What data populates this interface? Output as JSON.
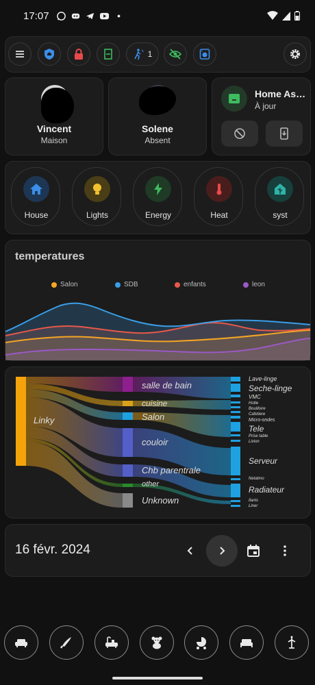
{
  "status_bar": {
    "time": "17:07"
  },
  "toolbar": {
    "menu_icon": "menu-icon",
    "chips": [
      {
        "name": "shield-home-chip",
        "icon": "shield-home-icon",
        "color": "#3b8ee8"
      },
      {
        "name": "lock-chip",
        "icon": "lock-icon",
        "color": "#e84a4a"
      },
      {
        "name": "door-chip",
        "icon": "door-closed-icon",
        "color": "#3dbb5e"
      },
      {
        "name": "motion-chip",
        "icon": "motion-sensor-icon",
        "color": "#3b8ee8",
        "count": "1"
      },
      {
        "name": "eye-off-chip",
        "icon": "eye-off-icon",
        "color": "#3dbb5e"
      },
      {
        "name": "washer-chip",
        "icon": "washing-machine-icon",
        "color": "#3b8ee8"
      }
    ],
    "settings_icon": "gear-icon"
  },
  "persons": [
    {
      "name": "Vincent",
      "state": "Maison"
    },
    {
      "name": "Solene",
      "state": "Absent"
    }
  ],
  "ha_card": {
    "title": "Home As…",
    "status": "À jour",
    "accent": "#3dbb5e"
  },
  "areas": [
    {
      "label": "House",
      "icon": "home-icon",
      "color": "#3b8ee8"
    },
    {
      "label": "Lights",
      "icon": "lightbulb-icon",
      "color": "#f2c12e"
    },
    {
      "label": "Energy",
      "icon": "lightning-icon",
      "color": "#3dbb5e"
    },
    {
      "label": "Heat",
      "icon": "thermometer-icon",
      "color": "#e84a4a"
    },
    {
      "label": "syst",
      "icon": "home-assistant-icon",
      "color": "#2fb3a8"
    }
  ],
  "temperatures": {
    "title": "temperatures",
    "legend": [
      {
        "name": "Salon",
        "color": "#f5a623"
      },
      {
        "name": "SDB",
        "color": "#3b9ee8"
      },
      {
        "name": "enfants",
        "color": "#e8584a"
      },
      {
        "name": "leon",
        "color": "#9b59c6"
      }
    ]
  },
  "sankey": {
    "source": {
      "label": "Linky",
      "color": "#f5a30b"
    },
    "rooms": [
      {
        "label": "salle de bain",
        "color": "#8e1f8e"
      },
      {
        "label": "cuisine",
        "color": "#d8a21a"
      },
      {
        "label": "Salon",
        "color": "#1ea1e0"
      },
      {
        "label": "couloir",
        "color": "#5460c8"
      },
      {
        "label": "Chb parentrale",
        "color": "#5460c8"
      },
      {
        "label": "other",
        "color": "#2a8a2a"
      },
      {
        "label": "Unknown",
        "color": "#8a8a8a"
      }
    ],
    "devices": [
      "Lave-linge",
      "Seche-linge",
      "VMC",
      "Hotte",
      "Bouilloire",
      "Cafetiere",
      "Micro-ondes",
      "Tele",
      "Prise table",
      "Livion",
      "Serveur",
      "Netatmo",
      "Radiateur",
      "Ilanis",
      "Liner"
    ],
    "device_color": "#1ea1e0"
  },
  "date_nav": {
    "date": "16 févr. 2024"
  },
  "bottom_nav": [
    {
      "name": "sofa-button",
      "icon": "sofa-icon"
    },
    {
      "name": "knife-button",
      "icon": "knife-icon"
    },
    {
      "name": "bathtub-button",
      "icon": "bathtub-icon"
    },
    {
      "name": "teddy-bear-button",
      "icon": "teddy-bear-icon"
    },
    {
      "name": "stroller-button",
      "icon": "stroller-icon"
    },
    {
      "name": "bed-button",
      "icon": "bed-icon"
    },
    {
      "name": "coat-rack-button",
      "icon": "coat-rack-icon"
    }
  ]
}
